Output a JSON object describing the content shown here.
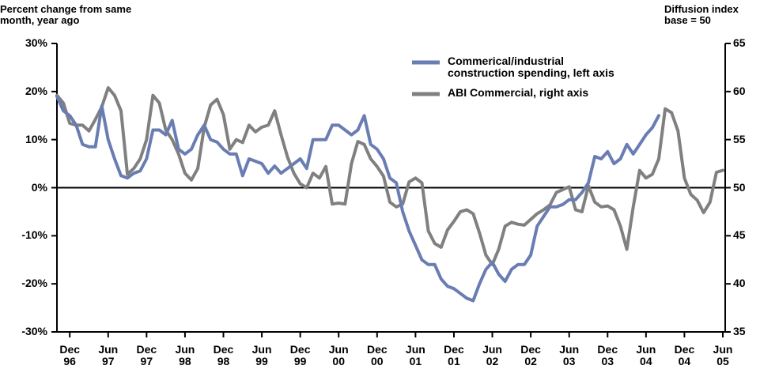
{
  "chart_data": {
    "type": "line",
    "y_label": "Percent change from same month, year ago",
    "y2_label": "Diffusion index base = 50",
    "categories": [
      null,
      null,
      "Dec 96",
      null,
      null,
      null,
      null,
      null,
      "Jun 97",
      null,
      null,
      null,
      null,
      null,
      "Dec 97",
      null,
      null,
      null,
      null,
      null,
      "Jun 98",
      null,
      null,
      null,
      null,
      null,
      "Dec 98",
      null,
      null,
      null,
      null,
      null,
      "Jun 99",
      null,
      null,
      null,
      null,
      null,
      "Dec 99",
      null,
      null,
      null,
      null,
      null,
      "Jun 00",
      null,
      null,
      null,
      null,
      null,
      "Dec 00",
      null,
      null,
      null,
      null,
      null,
      "Jun 01",
      null,
      null,
      null,
      null,
      null,
      "Dec 01",
      null,
      null,
      null,
      null,
      null,
      "Jun 02",
      null,
      null,
      null,
      null,
      null,
      "Dec 02",
      null,
      null,
      null,
      null,
      null,
      "Jun 03",
      null,
      null,
      null,
      null,
      null,
      "Dec 03",
      null,
      null,
      null,
      null,
      null,
      "Jun 04",
      null,
      null,
      null,
      null,
      null,
      "Dec 04",
      null,
      null,
      null,
      null,
      null,
      "Jun 05"
    ],
    "series": [
      {
        "name": "Commerical/industrial construction spending, left axis",
        "color": "#6a7db3",
        "axis": "y",
        "values": [
          19,
          16,
          15,
          13,
          9,
          8.5,
          8.5,
          17,
          10,
          6,
          2.5,
          2,
          3,
          3.5,
          6,
          12,
          12,
          11,
          14,
          8,
          7,
          8,
          11,
          13,
          10,
          9.5,
          8,
          7,
          7,
          2.5,
          6,
          5.5,
          5,
          3,
          4.5,
          3,
          4,
          5,
          6,
          4,
          10,
          10,
          10,
          13,
          13,
          12,
          11,
          12,
          15,
          9,
          8,
          6,
          2,
          1,
          -5,
          -9,
          -12,
          -15,
          -16,
          -16,
          -19,
          -20.5,
          -21,
          -22,
          -23,
          -23.5,
          -20,
          -17,
          -15.5,
          -18,
          -19.5,
          -17,
          -16,
          -16,
          -14,
          -8,
          -6,
          -4,
          -4,
          -3.5,
          -2.5,
          -2.5,
          -1,
          1,
          6.5,
          6,
          7.5,
          5,
          6,
          9,
          7,
          9,
          11,
          12.5,
          15,
          null,
          null,
          null,
          null,
          null,
          null,
          null,
          null,
          null,
          null
        ]
      },
      {
        "name": "ABI Commercial, right axis",
        "color": "#808080",
        "axis": "y2",
        "values": [
          59.6,
          58.8,
          56.7,
          56.5,
          56.5,
          55.9,
          57.1,
          58.4,
          60.4,
          59.6,
          58,
          51.4,
          52,
          53,
          55,
          59.6,
          58.8,
          56,
          55,
          53.5,
          51.5,
          50.8,
          52,
          56.3,
          58.6,
          59.2,
          57.6,
          54,
          55,
          54.7,
          56.5,
          55.8,
          56.3,
          56.5,
          58,
          55.5,
          53.2,
          51.5,
          50.4,
          50,
          51.5,
          51,
          52.2,
          48.3,
          48.4,
          48.3,
          52.5,
          54.8,
          54.5,
          53,
          52.2,
          51.2,
          48.5,
          48,
          48.3,
          50.6,
          51,
          50.5,
          45.5,
          44.2,
          43.8,
          45.6,
          46.5,
          47.5,
          47.7,
          47.3,
          45.3,
          43,
          42,
          43.6,
          46,
          46.4,
          46.2,
          46.1,
          46.7,
          47.3,
          47.7,
          48.2,
          49.5,
          49.8,
          50.1,
          47.7,
          47.5,
          50.2,
          48.5,
          48,
          48.1,
          47.7,
          46,
          43.6,
          48,
          51.8,
          51,
          51.4,
          53,
          58.2,
          57.8,
          55.9,
          51,
          49.3,
          48.7,
          47.4,
          48.5,
          51.6,
          51.8
        ]
      }
    ],
    "ylim": [
      -30,
      30
    ],
    "yticks": [
      {
        "value": -30,
        "label": "-30%"
      },
      {
        "value": -20,
        "label": "-20%"
      },
      {
        "value": -10,
        "label": "-10%"
      },
      {
        "value": 0,
        "label": "0%"
      },
      {
        "value": 10,
        "label": "10%"
      },
      {
        "value": 20,
        "label": "20%"
      },
      {
        "value": 30,
        "label": "30%"
      }
    ],
    "y2lim": [
      35,
      65
    ],
    "y2ticks": [
      35,
      40,
      45,
      50,
      55,
      60,
      65
    ],
    "zero_line": true,
    "legend": "upper right"
  }
}
